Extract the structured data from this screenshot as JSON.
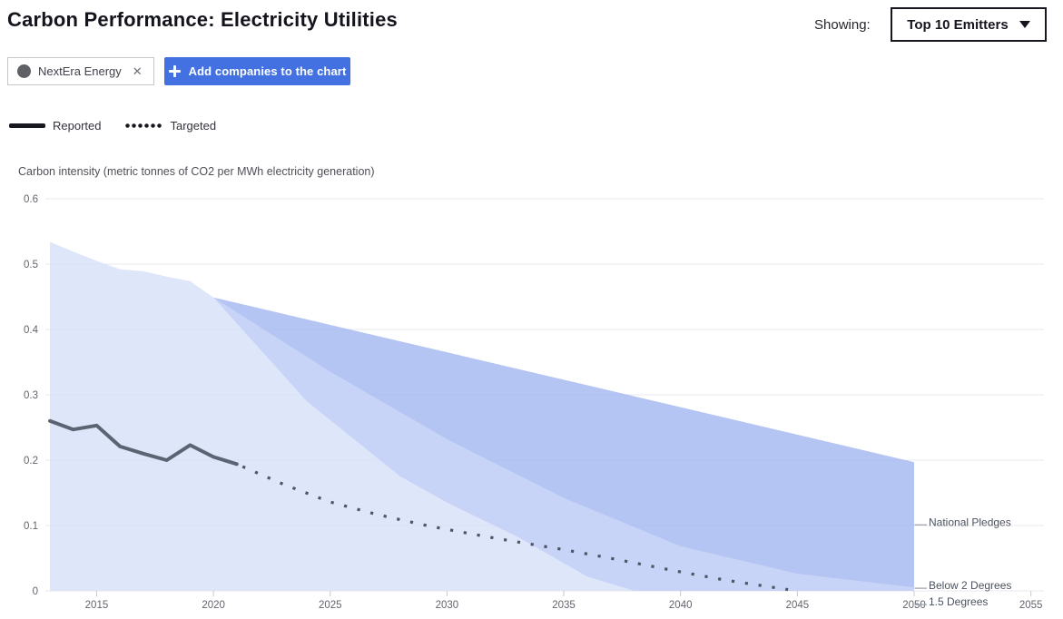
{
  "header": {
    "title": "Carbon Performance: Electricity Utilities",
    "showing_label": "Showing:",
    "dropdown_value": "Top 10 Emitters"
  },
  "controls": {
    "company_chip": {
      "label": "NextEra Energy",
      "remove_glyph": "✕"
    },
    "add_button_label": "Add companies to the chart"
  },
  "legend": {
    "reported_label": "Reported",
    "targeted_label": "Targeted"
  },
  "colors": {
    "accent_blue": "#4371e2",
    "company_dot": "#5f5f66",
    "reported_line": "#5b6472",
    "targeted_line": "#4d5566",
    "grid": "#e8e8ec",
    "axis_text": "#63636d",
    "benchmark_label_text": "#4c525d",
    "leader_line": "#9aa0aa"
  },
  "chart_data": {
    "type": "area",
    "title": "Carbon Performance: Electricity Utilities",
    "y_axis_title": "Carbon intensity (metric tonnes of CO2 per MWh electricity generation)",
    "legend_position": "top-left",
    "grid": "horizontal",
    "xlim": [
      2012.8,
      2055.6
    ],
    "ylim": [
      0,
      0.6
    ],
    "x_ticks": [
      2015,
      2020,
      2025,
      2030,
      2035,
      2040,
      2045,
      2050,
      2055
    ],
    "y_ticks": [
      {
        "v": 0,
        "label": "0"
      },
      {
        "v": 0.1,
        "label": "0.1"
      },
      {
        "v": 0.2,
        "label": "0.2"
      },
      {
        "v": 0.3,
        "label": "0.3"
      },
      {
        "v": 0.4,
        "label": "0.4"
      },
      {
        "v": 0.5,
        "label": "0.5"
      },
      {
        "v": 0.6,
        "label": "0.6"
      }
    ],
    "benchmark_history": [
      [
        2013,
        0.534
      ],
      [
        2014,
        0.519
      ],
      [
        2015,
        0.505
      ],
      [
        2016,
        0.492
      ],
      [
        2017,
        0.489
      ],
      [
        2018,
        0.481
      ],
      [
        2019,
        0.474
      ],
      [
        2020,
        0.449
      ]
    ],
    "benchmarks": [
      {
        "name": "National Pledges",
        "color": "#a3b7f0",
        "label_y": 0.101,
        "points": [
          [
            2020,
            0.449
          ],
          [
            2035,
            0.323
          ],
          [
            2050,
            0.197
          ]
        ]
      },
      {
        "name": "Below 2 Degrees",
        "color": "#bccaf5",
        "label_y": 0.004,
        "points": [
          [
            2020,
            0.449
          ],
          [
            2025,
            0.335
          ],
          [
            2030,
            0.232
          ],
          [
            2035,
            0.142
          ],
          [
            2040,
            0.068
          ],
          [
            2045,
            0.026
          ],
          [
            2050,
            0.005
          ]
        ]
      },
      {
        "name": "1.5 Degrees",
        "color": "#d7e0f9",
        "label_y": -0.021,
        "points": [
          [
            2020,
            0.449
          ],
          [
            2024,
            0.29
          ],
          [
            2028,
            0.175
          ],
          [
            2030,
            0.135
          ],
          [
            2033,
            0.083
          ],
          [
            2036,
            0.022
          ],
          [
            2038,
            0
          ],
          [
            2050,
            0
          ]
        ]
      }
    ],
    "series": [
      {
        "name": "NextEra Energy",
        "kind": "reported",
        "style": "solid",
        "color": "#5b6472",
        "points": [
          [
            2013,
            0.26
          ],
          [
            2014,
            0.247
          ],
          [
            2015,
            0.253
          ],
          [
            2016,
            0.221
          ],
          [
            2017,
            0.21
          ],
          [
            2018,
            0.2
          ],
          [
            2019,
            0.223
          ],
          [
            2020,
            0.205
          ],
          [
            2021,
            0.194
          ]
        ]
      },
      {
        "name": "NextEra Energy",
        "kind": "targeted",
        "style": "dotted",
        "color": "#4d5566",
        "points": [
          [
            2021,
            0.194
          ],
          [
            2023,
            0.163
          ],
          [
            2025,
            0.136
          ],
          [
            2027,
            0.117
          ],
          [
            2029,
            0.101
          ],
          [
            2030,
            0.094
          ],
          [
            2032,
            0.081
          ],
          [
            2034,
            0.069
          ],
          [
            2035,
            0.063
          ],
          [
            2037,
            0.05
          ],
          [
            2040,
            0.029
          ],
          [
            2042,
            0.016
          ],
          [
            2044.6,
            0.002
          ]
        ]
      }
    ]
  }
}
